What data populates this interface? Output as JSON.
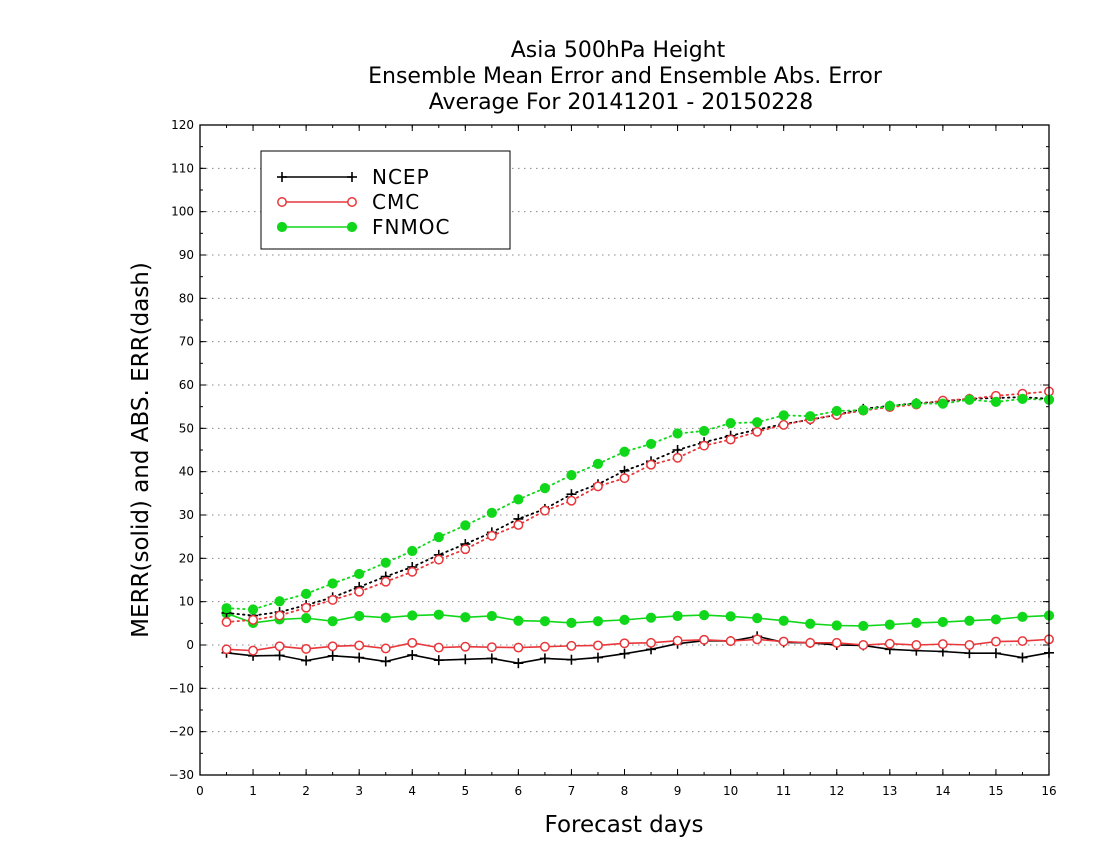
{
  "chart_data": {
    "type": "line",
    "title": [
      "Asia 500hPa Height",
      "Ensemble Mean Error and Ensemble Abs. Error",
      "Average For 20141201 - 20150228"
    ],
    "xlabel": "Forecast days",
    "ylabel": "MERR(solid) and ABS. ERR(dash)",
    "xlim": [
      0,
      16
    ],
    "ylim": [
      -30,
      120
    ],
    "xticks": [
      "0",
      "1",
      "2",
      "3",
      "4",
      "5",
      "6",
      "7",
      "8",
      "9",
      "10",
      "11",
      "12",
      "13",
      "14",
      "15",
      "16"
    ],
    "yticks": [
      "−30",
      "−20",
      "−10",
      "0",
      "10",
      "20",
      "30",
      "40",
      "50",
      "60",
      "70",
      "80",
      "90",
      "100",
      "110",
      "120"
    ],
    "grid": "dotted-horizontal",
    "legend": {
      "placement": "top-left",
      "entries": [
        {
          "label": "NCEP",
          "color": "#000000",
          "marker": "plus"
        },
        {
          "label": "CMC",
          "color": "#e8363a",
          "marker": "open-circle"
        },
        {
          "label": "FNMOC",
          "color": "#11d71a",
          "marker": "filled-circle"
        }
      ]
    },
    "x": [
      0.5,
      1,
      1.5,
      2,
      2.5,
      3,
      3.5,
      4,
      4.5,
      5,
      5.5,
      6,
      6.5,
      7,
      7.5,
      8,
      8.5,
      9,
      9.5,
      10,
      10.5,
      11,
      11.5,
      12,
      12.5,
      13,
      13.5,
      14,
      14.5,
      15,
      15.5,
      16
    ],
    "series": [
      {
        "name": "NCEP",
        "style": "solid",
        "color": "#000000",
        "marker": "plus",
        "values": [
          -1.8,
          -2.5,
          -2.4,
          -3.6,
          -2.5,
          -2.9,
          -3.8,
          -2.3,
          -3.5,
          -3.3,
          -3.1,
          -4.2,
          -3.1,
          -3.4,
          -2.9,
          -2.0,
          -1.0,
          0.3,
          1.0,
          0.9,
          2.0,
          0.6,
          0.5,
          0.0,
          -0.1,
          -1.0,
          -1.3,
          -1.5,
          -1.9,
          -1.9,
          -2.9,
          -1.8
        ]
      },
      {
        "name": "CMC",
        "style": "solid",
        "color": "#e8363a",
        "marker": "open-circle",
        "values": [
          -1.0,
          -1.3,
          -0.3,
          -0.9,
          -0.3,
          -0.1,
          -0.8,
          0.5,
          -0.6,
          -0.4,
          -0.5,
          -0.6,
          -0.4,
          -0.2,
          -0.1,
          0.4,
          0.5,
          1.0,
          1.2,
          0.9,
          1.3,
          0.8,
          0.5,
          0.5,
          0.0,
          0.3,
          0.0,
          0.2,
          0.0,
          0.8,
          0.9,
          1.3
        ]
      },
      {
        "name": "FNMOC",
        "style": "solid",
        "color": "#11d71a",
        "marker": "filled-circle",
        "values": [
          7.3,
          5.1,
          5.9,
          6.2,
          5.5,
          6.7,
          6.3,
          6.8,
          7.0,
          6.4,
          6.7,
          5.6,
          5.5,
          5.1,
          5.5,
          5.8,
          6.3,
          6.7,
          6.9,
          6.6,
          6.2,
          5.6,
          4.9,
          4.5,
          4.4,
          4.7,
          5.1,
          5.3,
          5.6,
          5.9,
          6.5,
          6.8
        ]
      },
      {
        "name": "NCEP",
        "style": "dotted",
        "color": "#000000",
        "marker": "plus",
        "values": [
          7.4,
          6.8,
          7.6,
          9.2,
          11.0,
          13.4,
          15.8,
          18.0,
          20.8,
          23.3,
          26.0,
          29.1,
          31.4,
          34.8,
          37.1,
          40.2,
          42.4,
          45.0,
          46.8,
          48.3,
          49.7,
          51.0,
          52.0,
          53.1,
          54.5,
          55.2,
          55.8,
          56.2,
          56.8,
          57.0,
          57.2,
          56.8
        ]
      },
      {
        "name": "CMC",
        "style": "dotted",
        "color": "#e8363a",
        "marker": "open-circle",
        "values": [
          5.3,
          5.8,
          6.8,
          8.6,
          10.4,
          12.3,
          14.6,
          16.9,
          19.7,
          22.1,
          25.2,
          27.7,
          31.0,
          33.3,
          36.6,
          38.5,
          41.6,
          43.2,
          46.0,
          47.4,
          49.2,
          50.8,
          52.1,
          53.1,
          54.1,
          54.9,
          55.5,
          56.4,
          56.8,
          57.5,
          58.0,
          58.5
        ]
      },
      {
        "name": "FNMOC",
        "style": "dotted",
        "color": "#11d71a",
        "marker": "filled-circle",
        "values": [
          8.5,
          8.2,
          10.1,
          11.8,
          14.2,
          16.4,
          19.0,
          21.7,
          24.9,
          27.6,
          30.5,
          33.6,
          36.2,
          39.2,
          41.8,
          44.6,
          46.4,
          48.8,
          49.4,
          51.2,
          51.4,
          53.0,
          52.8,
          54.0,
          54.2,
          55.2,
          55.7,
          55.7,
          56.6,
          56.1,
          56.8,
          56.6
        ]
      }
    ]
  }
}
